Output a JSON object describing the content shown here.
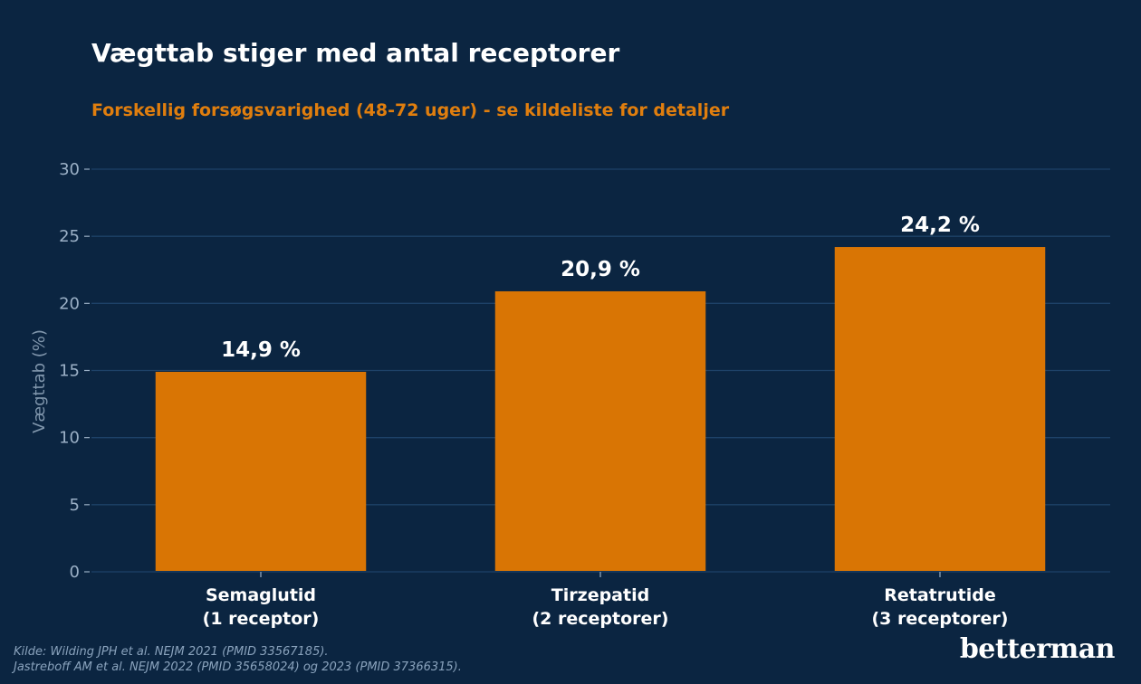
{
  "title": "Vægttab stiger med antal receptorer",
  "subtitle": "Forskellig forsøgsvarighed (48-72 uger) - se kildeliste for detaljer",
  "source": {
    "line1": "Kilde: Wilding JPH et al. NEJM 2021 (PMID 33567185).",
    "line2": "Jastreboff AM et al. NEJM 2022 (PMID 35658024) og 2023 (PMID 37366315)."
  },
  "logo": "betterman",
  "colors": {
    "background": "#0b2541",
    "bar": "#d97504",
    "grid": "#1e4268",
    "tick_text": "#9bb0c6",
    "subtitle": "#e07e0e"
  },
  "chart_data": {
    "type": "bar",
    "categories": [
      [
        "Semaglutid",
        "(1 receptor)"
      ],
      [
        "Tirzepatid",
        "(2 receptorer)"
      ],
      [
        "Retatrutide",
        "(3 receptorer)"
      ]
    ],
    "values": [
      14.9,
      20.9,
      24.2
    ],
    "value_labels": [
      "14,9 %",
      "20,9 %",
      "24,2 %"
    ],
    "ylabel": "Vægttab (%)",
    "ylim": [
      0,
      30
    ],
    "yticks": [
      0,
      5,
      10,
      15,
      20,
      25,
      30
    ],
    "grid": true,
    "legend": "none"
  }
}
